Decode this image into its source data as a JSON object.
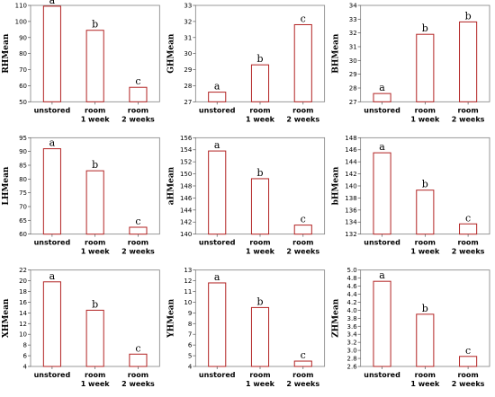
{
  "style": {
    "bar_stroke": "#b22222",
    "bar_fill": "#ffffff",
    "frame": "#7f7f7f",
    "text": "#000000"
  },
  "chart_data": [
    {
      "type": "bar",
      "ylabel": "RHMean",
      "categories": [
        [
          "unstored"
        ],
        [
          "room",
          "1 week"
        ],
        [
          "room",
          "2 weeks"
        ]
      ],
      "values": [
        109.5,
        94.5,
        59
      ],
      "letters": [
        "a",
        "b",
        "c"
      ],
      "ylim": [
        50,
        110
      ],
      "yticks": [
        50,
        60,
        70,
        80,
        90,
        100,
        110
      ]
    },
    {
      "type": "bar",
      "ylabel": "GHMean",
      "categories": [
        [
          "unstored"
        ],
        [
          "room",
          "1 week"
        ],
        [
          "room",
          "2 weeks"
        ]
      ],
      "values": [
        27.6,
        29.3,
        31.8
      ],
      "letters": [
        "a",
        "b",
        "c"
      ],
      "ylim": [
        27,
        33
      ],
      "yticks": [
        27,
        28,
        29,
        30,
        31,
        32,
        33
      ]
    },
    {
      "type": "bar",
      "ylabel": "BHMean",
      "categories": [
        [
          "unstored"
        ],
        [
          "room",
          "1 week"
        ],
        [
          "room",
          "2 weeks"
        ]
      ],
      "values": [
        27.6,
        31.9,
        32.8
      ],
      "letters": [
        "a",
        "b",
        "b"
      ],
      "ylim": [
        27,
        34
      ],
      "yticks": [
        27,
        28,
        29,
        30,
        31,
        32,
        33,
        34
      ]
    },
    {
      "type": "bar",
      "ylabel": "LHMean",
      "categories": [
        [
          "unstored"
        ],
        [
          "room",
          "1 week"
        ],
        [
          "room",
          "2 weeks"
        ]
      ],
      "values": [
        91,
        83,
        62.5
      ],
      "letters": [
        "a",
        "b",
        "c"
      ],
      "ylim": [
        60,
        95
      ],
      "yticks": [
        60,
        65,
        70,
        75,
        80,
        85,
        90,
        95
      ]
    },
    {
      "type": "bar",
      "ylabel": "aHMean",
      "categories": [
        [
          "unstored"
        ],
        [
          "room",
          "1 week"
        ],
        [
          "room",
          "2 weeks"
        ]
      ],
      "values": [
        153.8,
        149.2,
        141.5
      ],
      "letters": [
        "a",
        "b",
        "c"
      ],
      "ylim": [
        140,
        156
      ],
      "yticks": [
        140,
        142,
        144,
        146,
        148,
        150,
        152,
        154,
        156
      ]
    },
    {
      "type": "bar",
      "ylabel": "bHMean",
      "categories": [
        [
          "unstored"
        ],
        [
          "room",
          "1 week"
        ],
        [
          "room",
          "2 weeks"
        ]
      ],
      "values": [
        145.5,
        139.3,
        133.7
      ],
      "letters": [
        "a",
        "b",
        "c"
      ],
      "ylim": [
        132,
        148
      ],
      "yticks": [
        132,
        134,
        136,
        138,
        140,
        142,
        144,
        146,
        148
      ]
    },
    {
      "type": "bar",
      "ylabel": "XHMean",
      "categories": [
        [
          "unstored"
        ],
        [
          "room",
          "1 week"
        ],
        [
          "room",
          "2 weeks"
        ]
      ],
      "values": [
        19.8,
        14.5,
        6.3
      ],
      "letters": [
        "a",
        "b",
        "c"
      ],
      "ylim": [
        4,
        22
      ],
      "yticks": [
        4,
        6,
        8,
        10,
        12,
        14,
        16,
        18,
        20,
        22
      ]
    },
    {
      "type": "bar",
      "ylabel": "YHMean",
      "categories": [
        [
          "unstored"
        ],
        [
          "room",
          "1 week"
        ],
        [
          "room",
          "2 weeks"
        ]
      ],
      "values": [
        11.8,
        9.5,
        4.5
      ],
      "letters": [
        "a",
        "b",
        "c"
      ],
      "ylim": [
        4,
        13
      ],
      "yticks": [
        4,
        5,
        6,
        7,
        8,
        9,
        10,
        11,
        12,
        13
      ]
    },
    {
      "type": "bar",
      "ylabel": "ZHMean",
      "categories": [
        [
          "unstored"
        ],
        [
          "room",
          "1 week"
        ],
        [
          "room",
          "2 weeks"
        ]
      ],
      "values": [
        4.72,
        3.9,
        2.85
      ],
      "letters": [
        "a",
        "b",
        "c"
      ],
      "ylim": [
        2.6,
        5.0
      ],
      "yticks": [
        2.6,
        2.8,
        3.0,
        3.2,
        3.4,
        3.6,
        3.8,
        4.0,
        4.2,
        4.4,
        4.6,
        4.8,
        5.0
      ],
      "tick_decimals": 1
    }
  ]
}
